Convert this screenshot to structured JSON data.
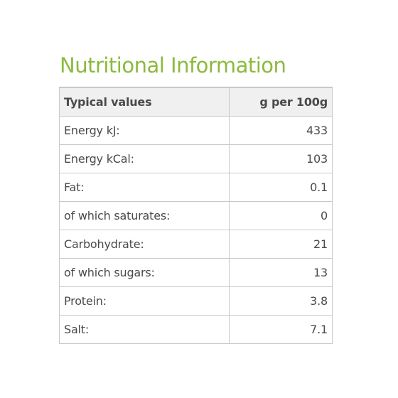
{
  "title": "Nutritional Information",
  "colors": {
    "title": "#8cba3d",
    "text": "#4a4a4a",
    "header_bg": "#f0f0f0",
    "border": "#c8c8c8"
  },
  "table": {
    "headers": [
      "Typical values",
      "g per 100g"
    ],
    "rows": [
      {
        "label": "Energy kJ:",
        "value": "433"
      },
      {
        "label": "Energy kCal:",
        "value": "103"
      },
      {
        "label": "Fat:",
        "value": "0.1"
      },
      {
        "label": "of which saturates:",
        "value": "0"
      },
      {
        "label": "Carbohydrate:",
        "value": "21"
      },
      {
        "label": "of which sugars:",
        "value": "13"
      },
      {
        "label": "Protein:",
        "value": "3.8"
      },
      {
        "label": "Salt:",
        "value": "7.1"
      }
    ]
  }
}
